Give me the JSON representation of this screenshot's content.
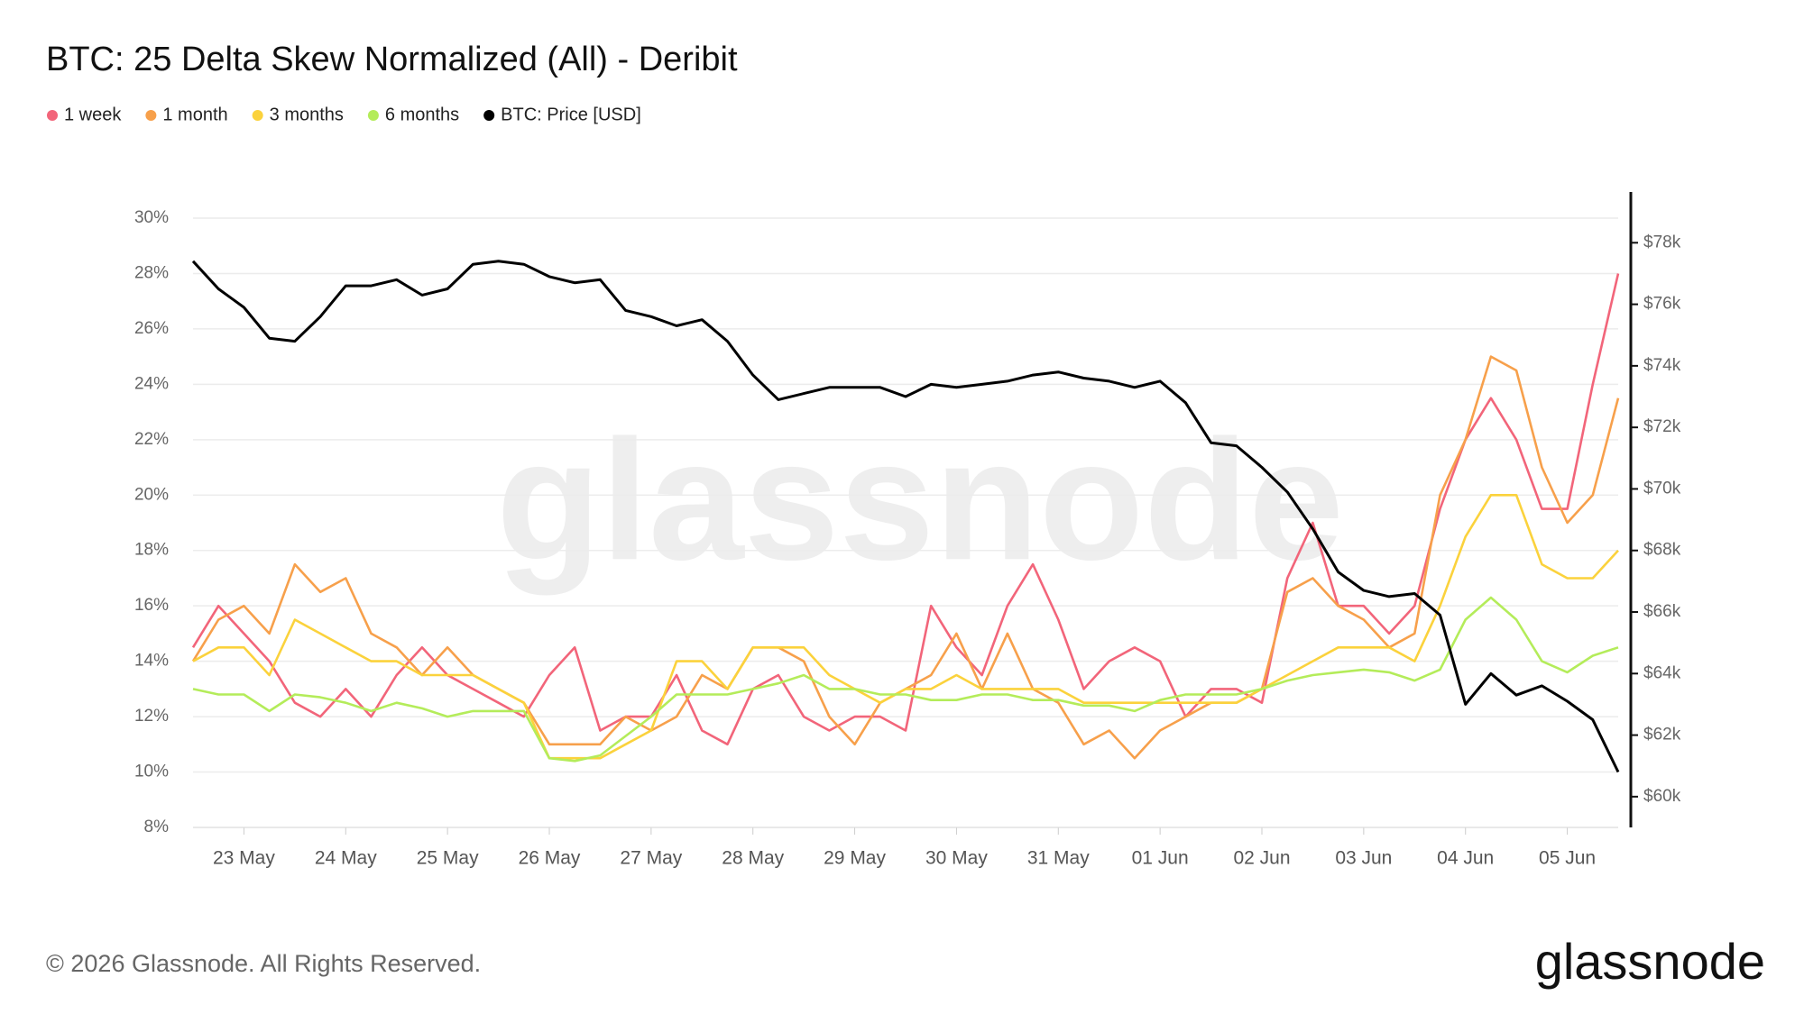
{
  "chart_data": {
    "type": "line",
    "title": "BTC: 25 Delta Skew Normalized (All) - Deribit",
    "categories": [
      null,
      null,
      "23 May",
      null,
      null,
      null,
      "24 May",
      null,
      null,
      null,
      "25 May",
      null,
      null,
      null,
      "26 May",
      null,
      null,
      null,
      "27 May",
      null,
      null,
      null,
      "28 May",
      null,
      null,
      null,
      "29 May",
      null,
      null,
      null,
      "30 May",
      null,
      null,
      null,
      "31 May",
      null,
      null,
      null,
      "01 Jun",
      null,
      null,
      null,
      "02 Jun",
      null,
      null,
      null,
      "03 Jun",
      null,
      null,
      null,
      "04 Jun",
      null,
      null,
      null,
      "05 Jun",
      null,
      null
    ],
    "series": [
      {
        "name": "1 week",
        "color": "#f2657a",
        "values": [
          14.5,
          16,
          15,
          14,
          12.5,
          12,
          13,
          12,
          13.5,
          14.5,
          13.5,
          13,
          12.5,
          12,
          13.5,
          14.5,
          11.5,
          12,
          12,
          13.5,
          11.5,
          11,
          13,
          13.5,
          12,
          11.5,
          12,
          12,
          11.5,
          16,
          14.5,
          13.5,
          16,
          17.5,
          15.5,
          13,
          14,
          14.5,
          14,
          12,
          13,
          13,
          12.5,
          17,
          19,
          16,
          16,
          15,
          16,
          19.5,
          22,
          23.5,
          22,
          19.5,
          19.5,
          24,
          28
        ]
      },
      {
        "name": "1 month",
        "color": "#f7a04b",
        "values": [
          14,
          15.5,
          16,
          15,
          17.5,
          16.5,
          17,
          15,
          14.5,
          13.5,
          14.5,
          13.5,
          13,
          12.5,
          11,
          11,
          11,
          12,
          11.5,
          12,
          13.5,
          13,
          14.5,
          14.5,
          14,
          12,
          11,
          12.5,
          13,
          13.5,
          15,
          13,
          15,
          13,
          12.5,
          11,
          11.5,
          10.5,
          11.5,
          12,
          12.5,
          12.5,
          13,
          16.5,
          17,
          16,
          15.5,
          14.5,
          15,
          20,
          22,
          25,
          24.5,
          21,
          19,
          20,
          23.5
        ]
      },
      {
        "name": "3 months",
        "color": "#fbd23c",
        "values": [
          14,
          14.5,
          14.5,
          13.5,
          15.5,
          15,
          14.5,
          14,
          14,
          13.5,
          13.5,
          13.5,
          13,
          12.5,
          10.5,
          10.5,
          10.5,
          11,
          11.5,
          14,
          14,
          13,
          14.5,
          14.5,
          14.5,
          13.5,
          13,
          12.5,
          13,
          13,
          13.5,
          13,
          13,
          13,
          13,
          12.5,
          12.5,
          12.5,
          12.5,
          12.5,
          12.5,
          12.5,
          13,
          13.5,
          14,
          14.5,
          14.5,
          14.5,
          14,
          16,
          18.5,
          20,
          20,
          17.5,
          17,
          17,
          18
        ]
      },
      {
        "name": "6 months",
        "color": "#b4ec5a",
        "values": [
          13,
          12.8,
          12.8,
          12.2,
          12.8,
          12.7,
          12.5,
          12.2,
          12.5,
          12.3,
          12,
          12.2,
          12.2,
          12.2,
          10.5,
          10.4,
          10.6,
          11.3,
          12,
          12.8,
          12.8,
          12.8,
          13,
          13.2,
          13.5,
          13,
          13,
          12.8,
          12.8,
          12.6,
          12.6,
          12.8,
          12.8,
          12.6,
          12.6,
          12.4,
          12.4,
          12.2,
          12.6,
          12.8,
          12.8,
          12.8,
          13,
          13.3,
          13.5,
          13.6,
          13.7,
          13.6,
          13.3,
          13.7,
          15.5,
          16.3,
          15.5,
          14,
          13.6,
          14.2,
          14.5
        ]
      },
      {
        "name": "BTC: Price [USD]",
        "color": "#000000",
        "axis": "y2",
        "values": [
          77400,
          76500,
          75900,
          74900,
          74800,
          75600,
          76600,
          76600,
          76800,
          76300,
          76500,
          77300,
          77400,
          77300,
          76900,
          76700,
          76800,
          75800,
          75600,
          75300,
          75500,
          74800,
          73700,
          72900,
          73100,
          73300,
          73300,
          73300,
          73000,
          73400,
          73300,
          73400,
          73500,
          73700,
          73800,
          73600,
          73500,
          73300,
          73500,
          72800,
          71500,
          71400,
          70700,
          69900,
          68700,
          67300,
          66700,
          66500,
          66600,
          65900,
          63000,
          64000,
          63300,
          63600,
          63100,
          62500,
          60800
        ]
      }
    ],
    "ylim": [
      8,
      30
    ],
    "yticks": [
      {
        "value": 8,
        "label": "8%"
      },
      {
        "value": 10,
        "label": "10%"
      },
      {
        "value": 12,
        "label": "12%"
      },
      {
        "value": 14,
        "label": "14%"
      },
      {
        "value": 16,
        "label": "16%"
      },
      {
        "value": 18,
        "label": "18%"
      },
      {
        "value": 20,
        "label": "20%"
      },
      {
        "value": 22,
        "label": "22%"
      },
      {
        "value": 24,
        "label": "24%"
      },
      {
        "value": 26,
        "label": "26%"
      },
      {
        "value": 28,
        "label": "28%"
      },
      {
        "value": 30,
        "label": "30%"
      }
    ],
    "y2lim": [
      59000,
      78800
    ],
    "y2ticks": [
      {
        "value": 60000,
        "label": "$60k"
      },
      {
        "value": 62000,
        "label": "$62k"
      },
      {
        "value": 64000,
        "label": "$64k"
      },
      {
        "value": 66000,
        "label": "$66k"
      },
      {
        "value": 68000,
        "label": "$68k"
      },
      {
        "value": 70000,
        "label": "$70k"
      },
      {
        "value": 72000,
        "label": "$72k"
      },
      {
        "value": 74000,
        "label": "$74k"
      },
      {
        "value": 76000,
        "label": "$76k"
      },
      {
        "value": 78000,
        "label": "$78k"
      }
    ],
    "grid": true,
    "legend": "top-left"
  },
  "watermark": "glassnode",
  "footer": "© 2026 Glassnode. All Rights Reserved.",
  "logo": "glassnode"
}
